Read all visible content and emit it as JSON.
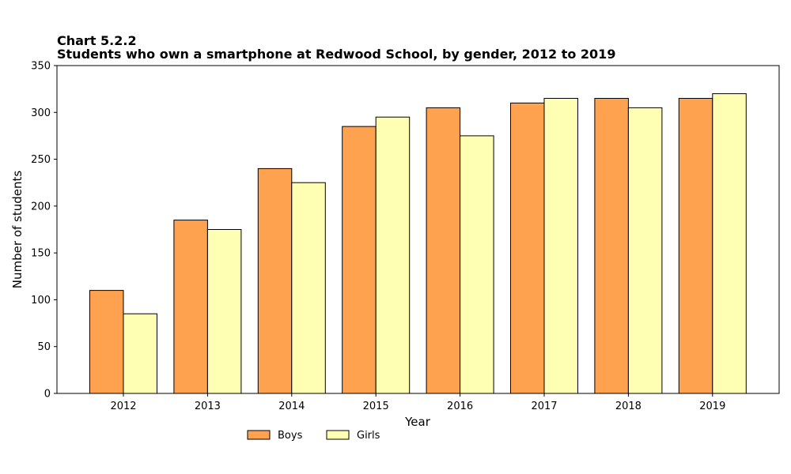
{
  "chart_data": {
    "type": "bar",
    "title": "Chart 5.2.2",
    "subtitle": "Students who own a smartphone at Redwood School, by gender, 2012 to 2019",
    "xlabel": "Year",
    "ylabel": "Number of students",
    "categories": [
      "2012",
      "2013",
      "2014",
      "2015",
      "2016",
      "2017",
      "2018",
      "2019"
    ],
    "ylim": [
      0,
      350
    ],
    "yticks": [
      0,
      50,
      100,
      150,
      200,
      250,
      300,
      350
    ],
    "grid": false,
    "legend_position": "bottom-left",
    "series": [
      {
        "name": "Boys",
        "color": "#FFA24F",
        "values": [
          110,
          185,
          240,
          285,
          305,
          310,
          315,
          315
        ]
      },
      {
        "name": "Girls",
        "color": "#FFFFB3",
        "values": [
          85,
          175,
          225,
          295,
          275,
          315,
          305,
          320
        ]
      }
    ]
  }
}
